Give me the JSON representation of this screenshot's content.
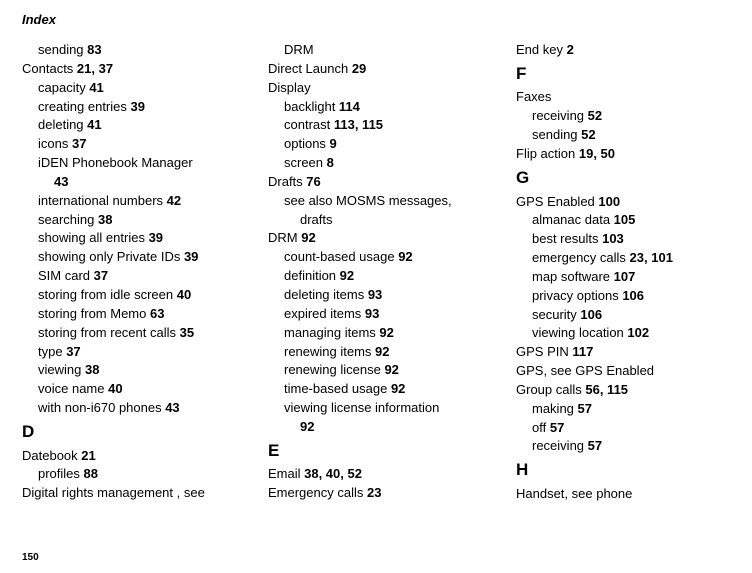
{
  "header": "Index",
  "pageNumber": "150",
  "col1": {
    "sending": {
      "text": "sending ",
      "page": "83"
    },
    "contacts": {
      "text": "Contacts ",
      "page": "21, 37"
    },
    "capacity": {
      "text": "capacity ",
      "page": "41"
    },
    "creating": {
      "text": "creating entries ",
      "page": "39"
    },
    "deleting": {
      "text": "deleting ",
      "page": "41"
    },
    "icons": {
      "text": "icons ",
      "page": "37"
    },
    "iden1": {
      "text": "iDEN Phonebook Manager"
    },
    "iden2": {
      "page": "43"
    },
    "intl": {
      "text": "international numbers ",
      "page": "42"
    },
    "searching": {
      "text": "searching ",
      "page": "38"
    },
    "showall": {
      "text": "showing all entries ",
      "page": "39"
    },
    "showpriv": {
      "text": "showing only Private IDs ",
      "page": "39"
    },
    "sim": {
      "text": "SIM card ",
      "page": "37"
    },
    "storeidle": {
      "text": "storing from idle screen ",
      "page": "40"
    },
    "storememo": {
      "text": "storing from Memo ",
      "page": "63"
    },
    "storerecent": {
      "text": "storing from recent calls ",
      "page": "35"
    },
    "type": {
      "text": "type ",
      "page": "37"
    },
    "viewing": {
      "text": "viewing ",
      "page": "38"
    },
    "voice": {
      "text": "voice name ",
      "page": "40"
    },
    "noni670": {
      "text": "with non-i670 phones ",
      "page": "43"
    },
    "D": "D",
    "datebook": {
      "text": "Datebook ",
      "page": "21"
    },
    "profiles": {
      "text": "profiles ",
      "page": "88"
    },
    "digital": {
      "text": "Digital rights management , see"
    }
  },
  "col2": {
    "drm": "DRM",
    "direct": {
      "text": "Direct Launch ",
      "page": "29"
    },
    "display": "Display",
    "backlight": {
      "text": "backlight ",
      "page": "114"
    },
    "contrast": {
      "text": "contrast ",
      "page": "113, 115"
    },
    "options": {
      "text": "options ",
      "page": "9"
    },
    "screen": {
      "text": "screen ",
      "page": "8"
    },
    "drafts": {
      "text": "Drafts ",
      "page": "76"
    },
    "seealso1": "see also MOSMS messages,",
    "seealso2": "drafts",
    "drm92": {
      "text": "DRM ",
      "page": "92"
    },
    "count": {
      "text": "count-based usage ",
      "page": "92"
    },
    "def": {
      "text": "definition ",
      "page": "92"
    },
    "delitems": {
      "text": "deleting items ",
      "page": "93"
    },
    "expired": {
      "text": "expired items ",
      "page": "93"
    },
    "managing": {
      "text": "managing items ",
      "page": "92"
    },
    "renewitems": {
      "text": "renewing items ",
      "page": "92"
    },
    "renewlic": {
      "text": "renewing license ",
      "page": "92"
    },
    "time": {
      "text": "time-based usage ",
      "page": "92"
    },
    "viewlic1": "viewing license information",
    "viewlic2": {
      "page": "92"
    },
    "E": "E",
    "email": {
      "text": "Email ",
      "page": "38, 40, 52"
    },
    "emerg": {
      "text": "Emergency calls ",
      "page": "23"
    }
  },
  "col3": {
    "endkey": {
      "text": "End key ",
      "page": "2"
    },
    "F": "F",
    "faxes": "Faxes",
    "receiving": {
      "text": "receiving ",
      "page": "52"
    },
    "sending": {
      "text": "sending ",
      "page": "52"
    },
    "flip": {
      "text": "Flip action ",
      "page": "19, 50"
    },
    "G": "G",
    "gps": {
      "text": "GPS Enabled ",
      "page": "100"
    },
    "almanac": {
      "text": "almanac data ",
      "page": "105"
    },
    "best": {
      "text": "best results ",
      "page": "103"
    },
    "emergcalls": {
      "text": "emergency calls ",
      "page": "23, 101"
    },
    "map": {
      "text": "map software ",
      "page": "107"
    },
    "privacy": {
      "text": "privacy options ",
      "page": "106"
    },
    "security": {
      "text": "security ",
      "page": "106"
    },
    "viewloc": {
      "text": "viewing location ",
      "page": "102"
    },
    "gpspin": {
      "text": "GPS PIN ",
      "page": "117"
    },
    "gpssee": "GPS, see GPS Enabled",
    "group": {
      "text": "Group calls ",
      "page": "56, 115"
    },
    "making": {
      "text": "making ",
      "page": "57"
    },
    "off": {
      "text": "off ",
      "page": "57"
    },
    "receiving2": {
      "text": "receiving ",
      "page": "57"
    },
    "H": "H",
    "handset": "Handset, see phone"
  }
}
